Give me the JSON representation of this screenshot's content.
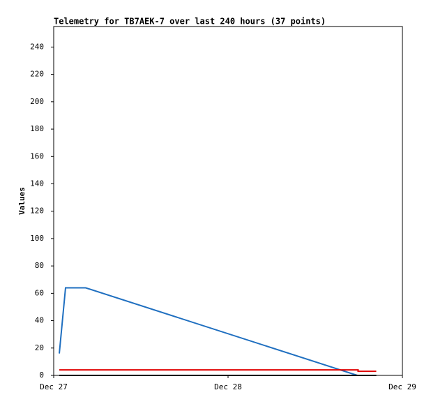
{
  "chart_data": {
    "type": "line",
    "title": "Telemetry for TB7AEK-7 over last 240 hours (37 points)",
    "y_label": "Values",
    "xlim": [
      0,
      48
    ],
    "xticks": [
      {
        "value": 0,
        "label": "Dec 27"
      },
      {
        "value": 24,
        "label": "Dec 28"
      },
      {
        "value": 48,
        "label": "Dec 29"
      }
    ],
    "ylim": [
      0,
      255
    ],
    "yticks": [
      0,
      20,
      40,
      60,
      80,
      100,
      120,
      140,
      160,
      180,
      200,
      220,
      240
    ],
    "grid": false,
    "series": [
      {
        "color": "#1f6fc0",
        "x": [
          0.77,
          1.63,
          4.4,
          41.8
        ],
        "values": [
          16,
          64,
          64,
          0
        ]
      },
      {
        "color": "#e00000",
        "x": [
          0.77,
          41.9,
          41.9,
          44.4
        ],
        "values": [
          4,
          4,
          3,
          3
        ]
      },
      {
        "color": "#000000",
        "x": [
          0.77,
          44.4
        ],
        "values": [
          0,
          0
        ]
      }
    ]
  }
}
